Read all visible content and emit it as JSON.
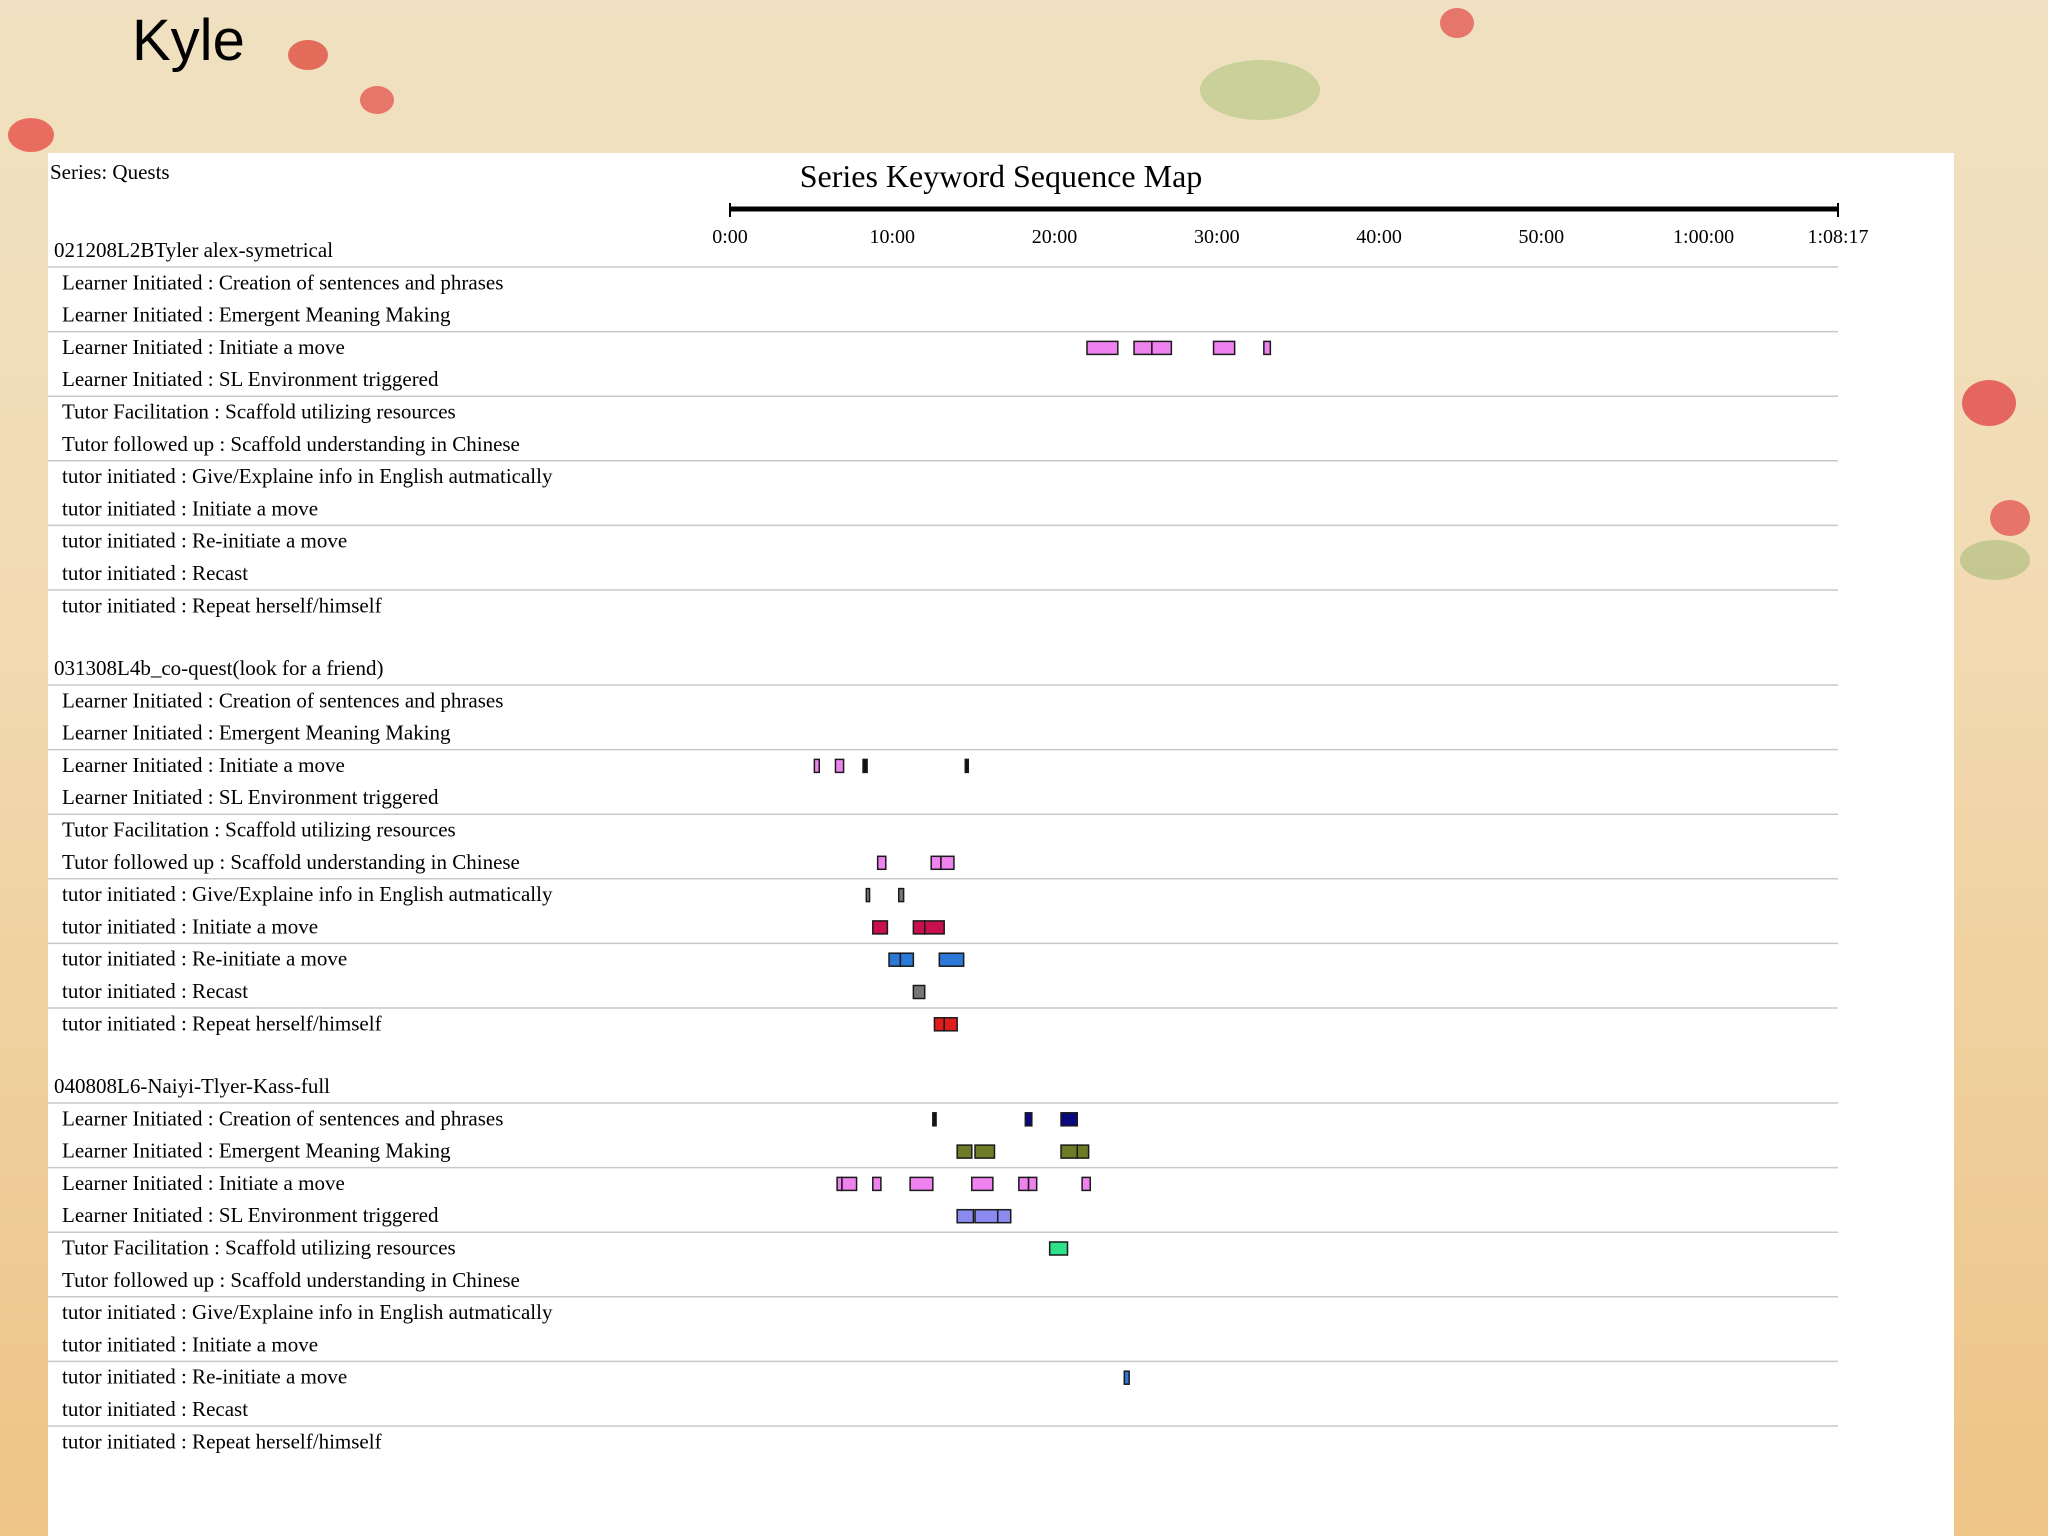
{
  "slide": {
    "title": "Kyle"
  },
  "chart_data": {
    "type": "keyword-sequence-map",
    "title": "Series Keyword Sequence Map",
    "series_label": "Series: Quests",
    "time_axis": {
      "unit": "minutes",
      "min": 0,
      "max": 68.283,
      "ticks": [
        {
          "value": 0,
          "label": "0:00"
        },
        {
          "value": 10,
          "label": "10:00"
        },
        {
          "value": 20,
          "label": "20:00"
        },
        {
          "value": 30,
          "label": "30:00"
        },
        {
          "value": 40,
          "label": "40:00"
        },
        {
          "value": 50,
          "label": "50:00"
        },
        {
          "value": 60,
          "label": "1:00:00"
        },
        {
          "value": 68.283,
          "label": "1:08:17"
        }
      ]
    },
    "colors": {
      "pink": "#ee82ee",
      "black": "#111111",
      "gray": "#777777",
      "crimson": "#c8104f",
      "blue": "#2a78d8",
      "red": "#e11c1c",
      "navy": "#0a0a80",
      "olive": "#6f7a26",
      "periwinkle": "#8a8af0",
      "green": "#2fe08a"
    },
    "categories": [
      "Learner Initiated : Creation of sentences and phrases",
      "Learner Initiated : Emergent Meaning Making",
      "Learner Initiated : Initiate a move",
      "Learner Initiated : SL Environment triggered",
      "Tutor Facilitation : Scaffold utilizing resources",
      "Tutor followed up : Scaffold understanding in Chinese",
      "tutor initiated : Give/Explaine info in English autmatically",
      "tutor initiated : Initiate a move",
      "tutor initiated : Re-initiate a move",
      "tutor initiated : Recast",
      "tutor initiated : Repeat herself/himself"
    ],
    "sessions": [
      {
        "name": "021208L2BTyler alex-symetrical",
        "segments": [
          {
            "row": 2,
            "start": 22.0,
            "end": 23.9,
            "color": "pink"
          },
          {
            "row": 2,
            "start": 24.9,
            "end": 26.0,
            "color": "pink"
          },
          {
            "row": 2,
            "start": 26.0,
            "end": 27.2,
            "color": "pink"
          },
          {
            "row": 2,
            "start": 29.8,
            "end": 31.1,
            "color": "pink"
          },
          {
            "row": 2,
            "start": 32.9,
            "end": 33.3,
            "color": "pink"
          }
        ]
      },
      {
        "name": "031308L4b_co-quest(look for a friend)",
        "segments": [
          {
            "row": 2,
            "start": 5.2,
            "end": 5.5,
            "color": "pink"
          },
          {
            "row": 2,
            "start": 6.5,
            "end": 7.0,
            "color": "pink"
          },
          {
            "row": 2,
            "start": 8.2,
            "end": 8.45,
            "color": "black"
          },
          {
            "row": 2,
            "start": 14.5,
            "end": 14.65,
            "color": "black"
          },
          {
            "row": 5,
            "start": 9.1,
            "end": 9.6,
            "color": "pink"
          },
          {
            "row": 5,
            "start": 12.4,
            "end": 13.0,
            "color": "pink"
          },
          {
            "row": 5,
            "start": 13.0,
            "end": 13.8,
            "color": "pink"
          },
          {
            "row": 6,
            "start": 8.4,
            "end": 8.6,
            "color": "gray"
          },
          {
            "row": 6,
            "start": 10.4,
            "end": 10.7,
            "color": "gray"
          },
          {
            "row": 7,
            "start": 8.8,
            "end": 9.7,
            "color": "crimson"
          },
          {
            "row": 7,
            "start": 11.3,
            "end": 12.0,
            "color": "crimson"
          },
          {
            "row": 7,
            "start": 12.0,
            "end": 13.2,
            "color": "crimson"
          },
          {
            "row": 8,
            "start": 9.8,
            "end": 10.5,
            "color": "blue"
          },
          {
            "row": 8,
            "start": 10.5,
            "end": 11.3,
            "color": "blue"
          },
          {
            "row": 8,
            "start": 12.9,
            "end": 14.4,
            "color": "blue"
          },
          {
            "row": 9,
            "start": 11.3,
            "end": 12.0,
            "color": "gray"
          },
          {
            "row": 10,
            "start": 12.6,
            "end": 13.2,
            "color": "red"
          },
          {
            "row": 10,
            "start": 13.2,
            "end": 14.0,
            "color": "red"
          }
        ]
      },
      {
        "name": "040808L6-Naiyi-Tlyer-Kass-full",
        "segments": [
          {
            "row": 0,
            "start": 12.5,
            "end": 12.7,
            "color": "black"
          },
          {
            "row": 0,
            "start": 18.2,
            "end": 18.6,
            "color": "navy"
          },
          {
            "row": 0,
            "start": 20.4,
            "end": 21.4,
            "color": "navy"
          },
          {
            "row": 1,
            "start": 14.0,
            "end": 14.9,
            "color": "olive"
          },
          {
            "row": 1,
            "start": 15.1,
            "end": 16.3,
            "color": "olive"
          },
          {
            "row": 1,
            "start": 20.4,
            "end": 21.4,
            "color": "olive"
          },
          {
            "row": 1,
            "start": 21.4,
            "end": 22.1,
            "color": "olive"
          },
          {
            "row": 2,
            "start": 6.6,
            "end": 6.9,
            "color": "pink"
          },
          {
            "row": 2,
            "start": 6.9,
            "end": 7.8,
            "color": "pink"
          },
          {
            "row": 2,
            "start": 8.8,
            "end": 9.3,
            "color": "pink"
          },
          {
            "row": 2,
            "start": 11.1,
            "end": 12.5,
            "color": "pink"
          },
          {
            "row": 2,
            "start": 14.9,
            "end": 16.2,
            "color": "pink"
          },
          {
            "row": 2,
            "start": 17.8,
            "end": 18.4,
            "color": "pink"
          },
          {
            "row": 2,
            "start": 18.4,
            "end": 18.9,
            "color": "pink"
          },
          {
            "row": 2,
            "start": 21.7,
            "end": 22.2,
            "color": "pink"
          },
          {
            "row": 3,
            "start": 14.0,
            "end": 15.0,
            "color": "periwinkle"
          },
          {
            "row": 3,
            "start": 15.1,
            "end": 16.5,
            "color": "periwinkle"
          },
          {
            "row": 3,
            "start": 16.5,
            "end": 17.3,
            "color": "periwinkle"
          },
          {
            "row": 4,
            "start": 19.7,
            "end": 20.8,
            "color": "green"
          },
          {
            "row": 8,
            "start": 24.3,
            "end": 24.6,
            "color": "blue"
          }
        ]
      }
    ]
  }
}
